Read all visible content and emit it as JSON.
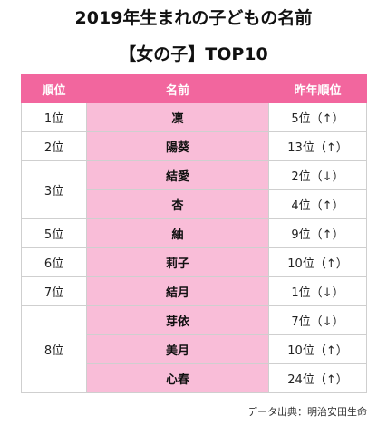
{
  "title_line1": "2019年生まれの子どもの名前",
  "title_line2": "【女の子】TOP10",
  "headers": {
    "rank": "順位",
    "name": "名前",
    "prev": "昨年順位"
  },
  "rows": [
    {
      "rank": "1位",
      "rank_rowspan": 1,
      "name": "凜",
      "prev": "5位（↑）"
    },
    {
      "rank": "2位",
      "rank_rowspan": 1,
      "name": "陽葵",
      "prev": "13位（↑）"
    },
    {
      "rank": "3位",
      "rank_rowspan": 2,
      "name": "結愛",
      "prev": "2位（↓）"
    },
    {
      "rank": null,
      "rank_rowspan": 0,
      "name": "杏",
      "prev": "4位（↑）"
    },
    {
      "rank": "5位",
      "rank_rowspan": 1,
      "name": "紬",
      "prev": "9位（↑）"
    },
    {
      "rank": "6位",
      "rank_rowspan": 1,
      "name": "莉子",
      "prev": "10位（↑）"
    },
    {
      "rank": "7位",
      "rank_rowspan": 1,
      "name": "結月",
      "prev": "1位（↓）"
    },
    {
      "rank": "8位",
      "rank_rowspan": 3,
      "name": "芽依",
      "prev": "7位（↓）"
    },
    {
      "rank": null,
      "rank_rowspan": 0,
      "name": "美月",
      "prev": "10位（↑）"
    },
    {
      "rank": null,
      "rank_rowspan": 0,
      "name": "心春",
      "prev": "24位（↑）"
    }
  ],
  "source": "データ出典：明治安田生命",
  "colors": {
    "header_bg": "#f2669e",
    "name_bg": "#f9bdd8"
  }
}
